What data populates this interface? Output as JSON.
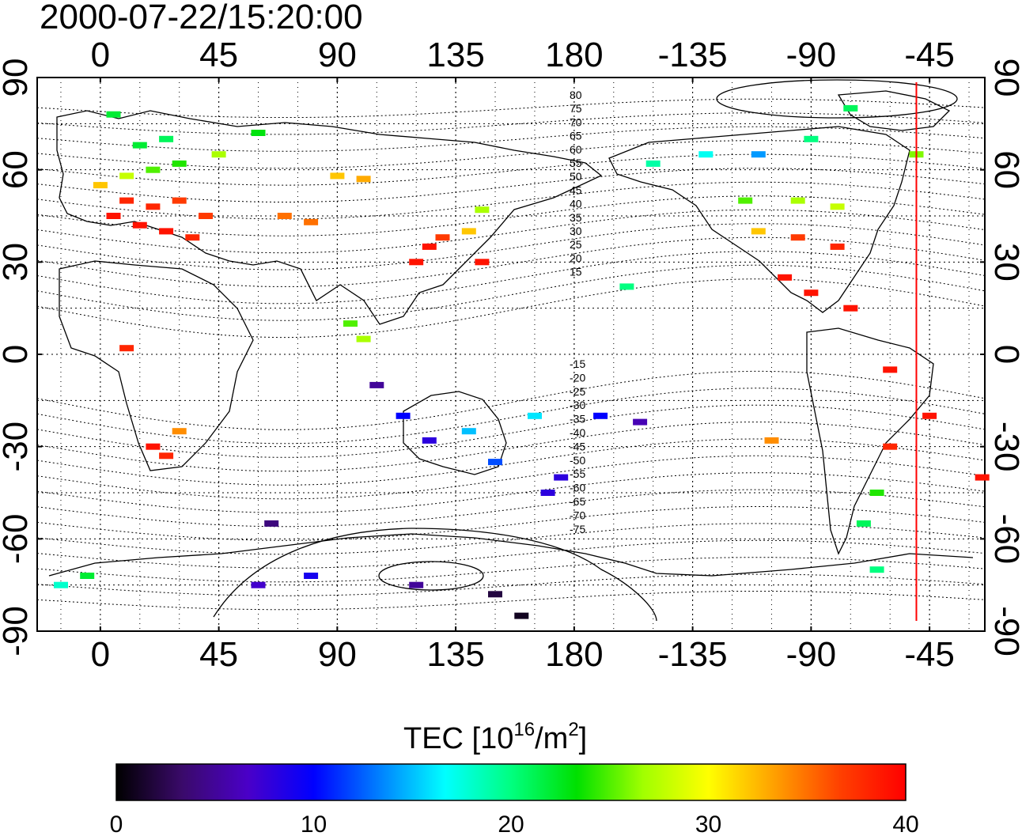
{
  "title": "2000-07-22/15:20:00",
  "chart_data": {
    "type": "map",
    "title": "2000-07-22/15:20:00",
    "projection": "cylindrical equidistant, centered 160E",
    "lon_ticks": [
      0,
      45,
      90,
      135,
      180,
      -135,
      -90,
      -45
    ],
    "lon_tick_labels": [
      "0",
      "45",
      "90",
      "135",
      "180",
      "-135",
      "-90",
      "-45"
    ],
    "lat_ticks": [
      90,
      60,
      30,
      0,
      -30,
      -60,
      -90
    ],
    "lat_tick_labels": [
      "90",
      "60",
      "30",
      "0",
      "-30",
      "-60",
      "-90"
    ],
    "lon_range": [
      -24,
      336
    ],
    "lat_range": [
      -90,
      90
    ],
    "grid": true,
    "terminator_longitude": -50,
    "contour_labels_north": [
      "80",
      "75",
      "70",
      "65",
      "60",
      "55",
      "50",
      "45",
      "40",
      "35",
      "30",
      "25",
      "20",
      "15"
    ],
    "contour_labels_south": [
      "-15",
      "-20",
      "-25",
      "-30",
      "-35",
      "-40",
      "-45",
      "-50",
      "-55",
      "-60",
      "-65",
      "-70",
      "-75"
    ],
    "colorbar": {
      "label_main": "TEC  [10",
      "label_sup1": "16",
      "label_mid": "/m",
      "label_sup2": "2",
      "label_end": "]",
      "range": [
        0,
        40
      ],
      "ticks": [
        "0",
        "10",
        "20",
        "30",
        "40"
      ],
      "colors": [
        "#000000",
        "#3a0a6a",
        "#4a00c8",
        "#0000ff",
        "#0080ff",
        "#00ffff",
        "#00ff80",
        "#00e000",
        "#a0ff00",
        "#ffff00",
        "#ffa000",
        "#ff4000",
        "#ff0000"
      ]
    },
    "tec_points": [
      {
        "lon": 10,
        "lat": 50,
        "tec": 38
      },
      {
        "lon": 20,
        "lat": 48,
        "tec": 38
      },
      {
        "lon": 30,
        "lat": 50,
        "tec": 37
      },
      {
        "lon": 5,
        "lat": 45,
        "tec": 39
      },
      {
        "lon": 15,
        "lat": 42,
        "tec": 39
      },
      {
        "lon": 25,
        "lat": 40,
        "tec": 39
      },
      {
        "lon": 35,
        "lat": 38,
        "tec": 38
      },
      {
        "lon": 40,
        "lat": 45,
        "tec": 37
      },
      {
        "lon": 0,
        "lat": 55,
        "tec": 32
      },
      {
        "lon": 10,
        "lat": 58,
        "tec": 28
      },
      {
        "lon": 20,
        "lat": 60,
        "tec": 25
      },
      {
        "lon": 30,
        "lat": 62,
        "tec": 24
      },
      {
        "lon": 15,
        "lat": 68,
        "tec": 22
      },
      {
        "lon": 25,
        "lat": 70,
        "tec": 21
      },
      {
        "lon": 5,
        "lat": 78,
        "tec": 22
      },
      {
        "lon": 60,
        "lat": 72,
        "tec": 23
      },
      {
        "lon": 45,
        "lat": 65,
        "tec": 27
      },
      {
        "lon": 80,
        "lat": 43,
        "tec": 35
      },
      {
        "lon": 70,
        "lat": 45,
        "tec": 35
      },
      {
        "lon": 90,
        "lat": 58,
        "tec": 32
      },
      {
        "lon": 100,
        "lat": 57,
        "tec": 33
      },
      {
        "lon": 125,
        "lat": 35,
        "tec": 39
      },
      {
        "lon": 130,
        "lat": 38,
        "tec": 37
      },
      {
        "lon": 140,
        "lat": 40,
        "tec": 32
      },
      {
        "lon": 145,
        "lat": 47,
        "tec": 27
      },
      {
        "lon": 120,
        "lat": 30,
        "tec": 39
      },
      {
        "lon": 145,
        "lat": 30,
        "tec": 39
      },
      {
        "lon": 100,
        "lat": 5,
        "tec": 27
      },
      {
        "lon": 95,
        "lat": 10,
        "tec": 25
      },
      {
        "lon": 105,
        "lat": -10,
        "tec": 5
      },
      {
        "lon": 115,
        "lat": -20,
        "tec": 10
      },
      {
        "lon": 125,
        "lat": -28,
        "tec": 8
      },
      {
        "lon": 140,
        "lat": -25,
        "tec": 15
      },
      {
        "lon": 150,
        "lat": -35,
        "tec": 12
      },
      {
        "lon": 170,
        "lat": -45,
        "tec": 8
      },
      {
        "lon": 175,
        "lat": -40,
        "tec": 8
      },
      {
        "lon": 165,
        "lat": -20,
        "tec": 16
      },
      {
        "lon": 190,
        "lat": -20,
        "tec": 10
      },
      {
        "lon": 205,
        "lat": -22,
        "tec": 6
      },
      {
        "lon": 20,
        "lat": -30,
        "tec": 39
      },
      {
        "lon": 25,
        "lat": -33,
        "tec": 38
      },
      {
        "lon": 30,
        "lat": -25,
        "tec": 34
      },
      {
        "lon": 10,
        "lat": 2,
        "tec": 38
      },
      {
        "lon": -25,
        "lat": -40,
        "tec": 39
      },
      {
        "lon": 200,
        "lat": 22,
        "tec": 20
      },
      {
        "lon": 245,
        "lat": 50,
        "tec": 25
      },
      {
        "lon": 265,
        "lat": 50,
        "tec": 27
      },
      {
        "lon": 280,
        "lat": 48,
        "tec": 28
      },
      {
        "lon": 250,
        "lat": 40,
        "tec": 32
      },
      {
        "lon": 265,
        "lat": 38,
        "tec": 37
      },
      {
        "lon": 280,
        "lat": 35,
        "tec": 38
      },
      {
        "lon": 260,
        "lat": 25,
        "tec": 39
      },
      {
        "lon": 270,
        "lat": 20,
        "tec": 39
      },
      {
        "lon": 285,
        "lat": 15,
        "tec": 39
      },
      {
        "lon": 210,
        "lat": 62,
        "tec": 19
      },
      {
        "lon": 230,
        "lat": 65,
        "tec": 17
      },
      {
        "lon": 250,
        "lat": 65,
        "tec": 14
      },
      {
        "lon": 270,
        "lat": 70,
        "tec": 20
      },
      {
        "lon": 285,
        "lat": 80,
        "tec": 21
      },
      {
        "lon": 310,
        "lat": 65,
        "tec": 26
      },
      {
        "lon": 300,
        "lat": -5,
        "tec": 39
      },
      {
        "lon": 315,
        "lat": -20,
        "tec": 39
      },
      {
        "lon": 300,
        "lat": -30,
        "tec": 38
      },
      {
        "lon": 295,
        "lat": -45,
        "tec": 24
      },
      {
        "lon": 290,
        "lat": -55,
        "tec": 21
      },
      {
        "lon": 295,
        "lat": -70,
        "tec": 20
      },
      {
        "lon": 255,
        "lat": -28,
        "tec": 34
      },
      {
        "lon": 80,
        "lat": -72,
        "tec": 9
      },
      {
        "lon": 120,
        "lat": -75,
        "tec": 5
      },
      {
        "lon": 150,
        "lat": -78,
        "tec": 2
      },
      {
        "lon": 160,
        "lat": -85,
        "tec": 1
      },
      {
        "lon": 60,
        "lat": -75,
        "tec": 7
      },
      {
        "lon": -15,
        "lat": -75,
        "tec": 18
      },
      {
        "lon": -5,
        "lat": -72,
        "tec": 22
      },
      {
        "lon": 65,
        "lat": -55,
        "tec": 4
      }
    ]
  }
}
